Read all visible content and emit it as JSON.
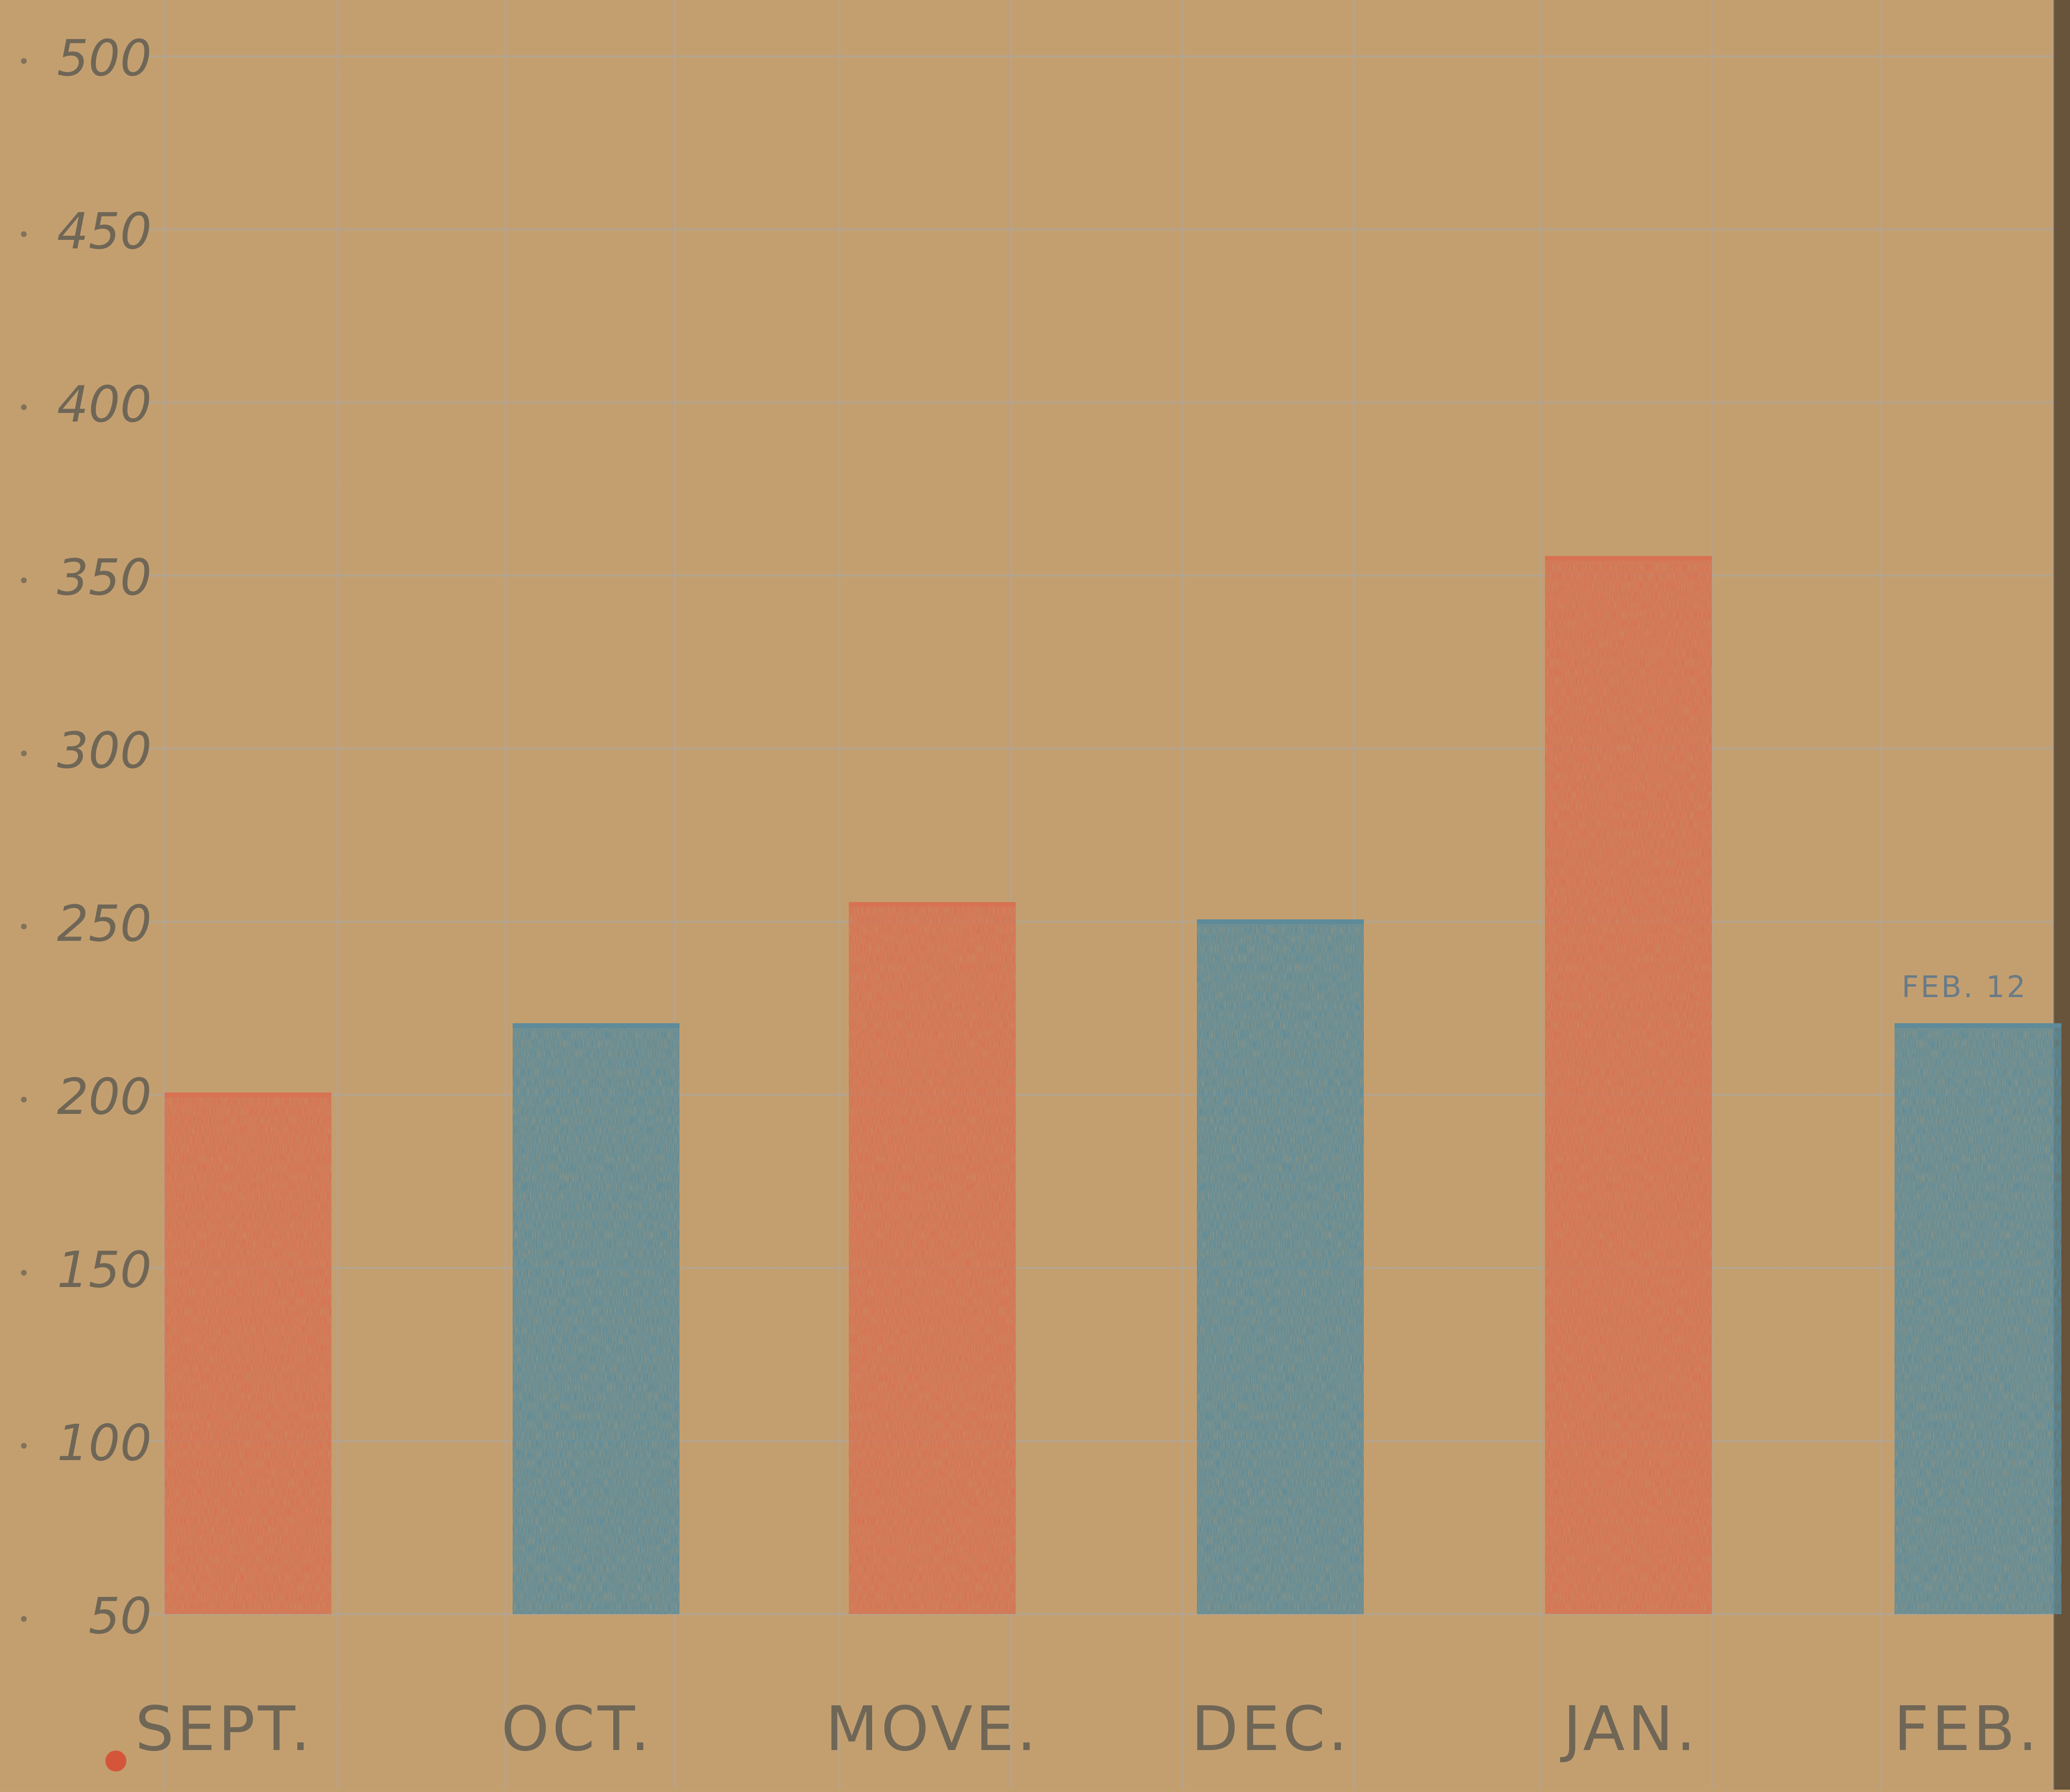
{
  "chart_data": {
    "type": "bar",
    "title": "",
    "xlabel": "",
    "ylabel": "",
    "categories": [
      "SEPT.",
      "OCT.",
      "MOVE.",
      "DEC.",
      "JAN.",
      "FEB."
    ],
    "values": [
      200,
      220,
      255,
      250,
      355,
      220
    ],
    "annotations": [
      {
        "category": "FEB.",
        "text": "FEB. 12"
      }
    ],
    "yticks": [
      50,
      100,
      150,
      200,
      250,
      300,
      350,
      400,
      450,
      500
    ],
    "ylim": [
      50,
      500
    ],
    "grid": true,
    "legend": "none",
    "colors": {
      "paper": "#c49f6f",
      "grid": "#a9a9a6",
      "red_bar": "#d77252",
      "blue_bar": "#5d8b9a",
      "pencil": "#6f6656",
      "tick_dot": "#d4553a"
    },
    "bar_colors": [
      "red_bar",
      "blue_bar",
      "red_bar",
      "blue_bar",
      "red_bar",
      "blue_bar"
    ]
  }
}
